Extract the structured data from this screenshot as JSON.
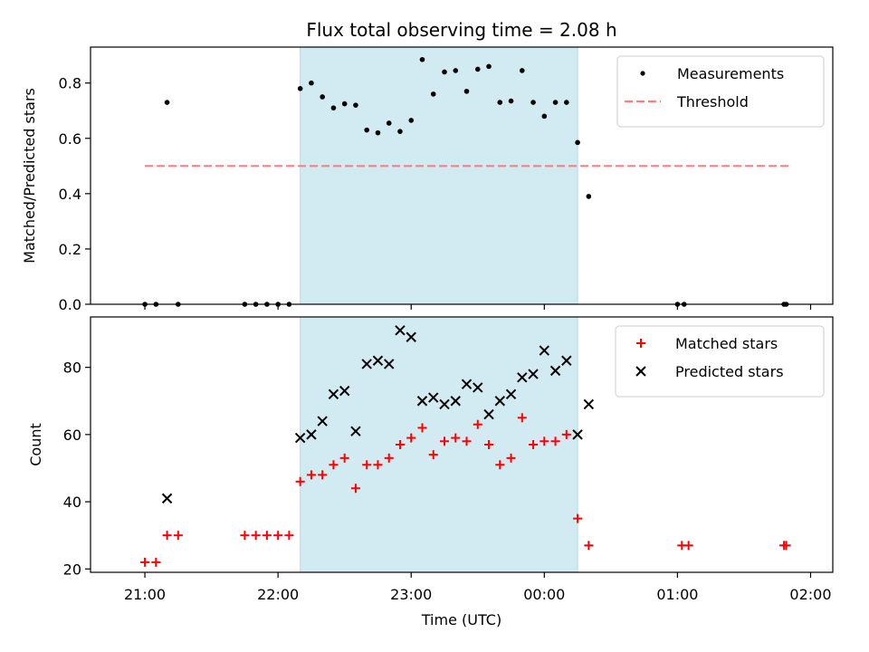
{
  "chart_data": [
    {
      "type": "scatter",
      "title": "Flux total observing time = 2.08 h",
      "xlabel": "",
      "ylabel": "Matched/Predicted stars",
      "ylim": [
        0,
        0.93
      ],
      "yticks": [
        "0.0",
        "0.2",
        "0.4",
        "0.6",
        "0.8"
      ],
      "yticks_values": [
        0.0,
        0.2,
        0.4,
        0.6,
        0.8
      ],
      "xticks_values": [
        0,
        60,
        120,
        180,
        240,
        300
      ],
      "show_xtick_labels": false,
      "legend_position": "top-right",
      "grid": false,
      "shaded_region": {
        "x_start": 70,
        "x_end": 195,
        "color": "#add8e6"
      },
      "threshold": {
        "name": "Threshold",
        "y": 0.5,
        "x_start": 0,
        "x_end": 290,
        "color": "#ff7f7f"
      },
      "series": [
        {
          "name": "Measurements",
          "color": "#000000",
          "marker": "dot",
          "points": [
            {
              "x": 0,
              "y": 0.0
            },
            {
              "x": 5,
              "y": 0.0
            },
            {
              "x": 10,
              "y": 0.73
            },
            {
              "x": 15,
              "y": 0.0
            },
            {
              "x": 45,
              "y": 0.0
            },
            {
              "x": 50,
              "y": 0.0
            },
            {
              "x": 55,
              "y": 0.0
            },
            {
              "x": 60,
              "y": 0.0
            },
            {
              "x": 65,
              "y": 0.0
            },
            {
              "x": 70,
              "y": 0.78
            },
            {
              "x": 75,
              "y": 0.8
            },
            {
              "x": 80,
              "y": 0.75
            },
            {
              "x": 85,
              "y": 0.71
            },
            {
              "x": 90,
              "y": 0.725
            },
            {
              "x": 95,
              "y": 0.72
            },
            {
              "x": 100,
              "y": 0.63
            },
            {
              "x": 105,
              "y": 0.62
            },
            {
              "x": 110,
              "y": 0.655
            },
            {
              "x": 115,
              "y": 0.625
            },
            {
              "x": 120,
              "y": 0.665
            },
            {
              "x": 125,
              "y": 0.885
            },
            {
              "x": 130,
              "y": 0.76
            },
            {
              "x": 135,
              "y": 0.84
            },
            {
              "x": 140,
              "y": 0.845
            },
            {
              "x": 145,
              "y": 0.77
            },
            {
              "x": 150,
              "y": 0.85
            },
            {
              "x": 155,
              "y": 0.86
            },
            {
              "x": 160,
              "y": 0.73
            },
            {
              "x": 165,
              "y": 0.735
            },
            {
              "x": 170,
              "y": 0.845
            },
            {
              "x": 175,
              "y": 0.73
            },
            {
              "x": 180,
              "y": 0.68
            },
            {
              "x": 185,
              "y": 0.73
            },
            {
              "x": 190,
              "y": 0.73
            },
            {
              "x": 195,
              "y": 0.585
            },
            {
              "x": 200,
              "y": 0.39
            },
            {
              "x": 240,
              "y": 0.0
            },
            {
              "x": 243,
              "y": 0.0
            },
            {
              "x": 288,
              "y": 0.0
            },
            {
              "x": 289,
              "y": 0.0
            }
          ]
        }
      ]
    },
    {
      "type": "scatter",
      "title": "",
      "xlabel": "Time (UTC)",
      "ylabel": "Count",
      "ylim": [
        19,
        95
      ],
      "yticks": [
        "20",
        "40",
        "60",
        "80"
      ],
      "yticks_values": [
        20,
        40,
        60,
        80
      ],
      "xticks": [
        "21:00",
        "22:00",
        "23:00",
        "00:00",
        "01:00",
        "02:00"
      ],
      "xticks_values": [
        0,
        60,
        120,
        180,
        240,
        300
      ],
      "legend_position": "top-right",
      "grid": false,
      "shaded_region": {
        "x_start": 70,
        "x_end": 195,
        "color": "#add8e6"
      },
      "series": [
        {
          "name": "Matched stars",
          "color": "#ff0000",
          "marker": "plus",
          "points": [
            {
              "x": 0,
              "y": 22
            },
            {
              "x": 5,
              "y": 22
            },
            {
              "x": 10,
              "y": 30
            },
            {
              "x": 15,
              "y": 30
            },
            {
              "x": 45,
              "y": 30
            },
            {
              "x": 50,
              "y": 30
            },
            {
              "x": 55,
              "y": 30
            },
            {
              "x": 60,
              "y": 30
            },
            {
              "x": 65,
              "y": 30
            },
            {
              "x": 70,
              "y": 46
            },
            {
              "x": 75,
              "y": 48
            },
            {
              "x": 80,
              "y": 48
            },
            {
              "x": 85,
              "y": 51
            },
            {
              "x": 90,
              "y": 53
            },
            {
              "x": 95,
              "y": 44
            },
            {
              "x": 100,
              "y": 51
            },
            {
              "x": 105,
              "y": 51
            },
            {
              "x": 110,
              "y": 53
            },
            {
              "x": 115,
              "y": 57
            },
            {
              "x": 120,
              "y": 59
            },
            {
              "x": 125,
              "y": 62
            },
            {
              "x": 130,
              "y": 54
            },
            {
              "x": 135,
              "y": 58
            },
            {
              "x": 140,
              "y": 59
            },
            {
              "x": 145,
              "y": 58
            },
            {
              "x": 150,
              "y": 63
            },
            {
              "x": 155,
              "y": 57
            },
            {
              "x": 160,
              "y": 51
            },
            {
              "x": 165,
              "y": 53
            },
            {
              "x": 170,
              "y": 65
            },
            {
              "x": 175,
              "y": 57
            },
            {
              "x": 180,
              "y": 58
            },
            {
              "x": 185,
              "y": 58
            },
            {
              "x": 190,
              "y": 60
            },
            {
              "x": 195,
              "y": 35
            },
            {
              "x": 200,
              "y": 27
            },
            {
              "x": 242,
              "y": 27
            },
            {
              "x": 245,
              "y": 27
            },
            {
              "x": 288,
              "y": 27
            },
            {
              "x": 289,
              "y": 27
            }
          ]
        },
        {
          "name": "Predicted stars",
          "color": "#000000",
          "marker": "x",
          "points": [
            {
              "x": 10,
              "y": 41
            },
            {
              "x": 70,
              "y": 59
            },
            {
              "x": 75,
              "y": 60
            },
            {
              "x": 80,
              "y": 64
            },
            {
              "x": 85,
              "y": 72
            },
            {
              "x": 90,
              "y": 73
            },
            {
              "x": 95,
              "y": 61
            },
            {
              "x": 100,
              "y": 81
            },
            {
              "x": 105,
              "y": 82
            },
            {
              "x": 110,
              "y": 81
            },
            {
              "x": 115,
              "y": 91
            },
            {
              "x": 120,
              "y": 89
            },
            {
              "x": 125,
              "y": 70
            },
            {
              "x": 130,
              "y": 71
            },
            {
              "x": 135,
              "y": 69
            },
            {
              "x": 140,
              "y": 70
            },
            {
              "x": 145,
              "y": 75
            },
            {
              "x": 150,
              "y": 74
            },
            {
              "x": 155,
              "y": 66
            },
            {
              "x": 160,
              "y": 70
            },
            {
              "x": 165,
              "y": 72
            },
            {
              "x": 170,
              "y": 77
            },
            {
              "x": 175,
              "y": 78
            },
            {
              "x": 180,
              "y": 85
            },
            {
              "x": 185,
              "y": 79
            },
            {
              "x": 190,
              "y": 82
            },
            {
              "x": 195,
              "y": 60
            },
            {
              "x": 200,
              "y": 69
            }
          ]
        }
      ]
    }
  ]
}
